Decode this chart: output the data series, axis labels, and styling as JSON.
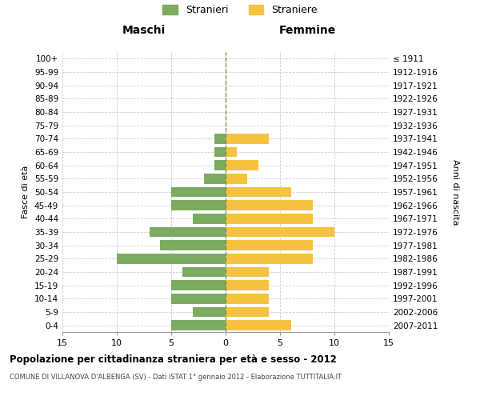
{
  "age_groups": [
    "0-4",
    "5-9",
    "10-14",
    "15-19",
    "20-24",
    "25-29",
    "30-34",
    "35-39",
    "40-44",
    "45-49",
    "50-54",
    "55-59",
    "60-64",
    "65-69",
    "70-74",
    "75-79",
    "80-84",
    "85-89",
    "90-94",
    "95-99",
    "100+"
  ],
  "birth_years": [
    "2007-2011",
    "2002-2006",
    "1997-2001",
    "1992-1996",
    "1987-1991",
    "1982-1986",
    "1977-1981",
    "1972-1976",
    "1967-1971",
    "1962-1966",
    "1957-1961",
    "1952-1956",
    "1947-1951",
    "1942-1946",
    "1937-1941",
    "1932-1936",
    "1927-1931",
    "1922-1926",
    "1917-1921",
    "1912-1916",
    "≤ 1911"
  ],
  "maschi": [
    5,
    3,
    5,
    5,
    4,
    10,
    6,
    7,
    3,
    5,
    5,
    2,
    1,
    1,
    1,
    0,
    0,
    0,
    0,
    0,
    0
  ],
  "femmine": [
    6,
    4,
    4,
    4,
    4,
    8,
    8,
    10,
    8,
    8,
    6,
    2,
    3,
    1,
    4,
    0,
    0,
    0,
    0,
    0,
    0
  ],
  "color_maschi": "#7aab5e",
  "color_femmine": "#f5c242",
  "bg_color": "#ffffff",
  "grid_color": "#cccccc",
  "center_line_color": "#888855",
  "title": "Popolazione per cittadinanza straniera per età e sesso - 2012",
  "subtitle": "COMUNE DI VILLANOVA D'ALBENGA (SV) - Dati ISTAT 1° gennaio 2012 - Elaborazione TUTTITALIA.IT",
  "label_maschi": "Maschi",
  "label_femmine": "Femmine",
  "ylabel_left": "Fasce di età",
  "ylabel_right": "Anni di nascita",
  "legend_maschi": "Stranieri",
  "legend_femmine": "Straniere",
  "xlim": 15,
  "xticks": [
    -15,
    -10,
    -5,
    0,
    5,
    10,
    15
  ],
  "xticklabels": [
    "15",
    "10",
    "5",
    "0",
    "5",
    "10",
    "15"
  ]
}
